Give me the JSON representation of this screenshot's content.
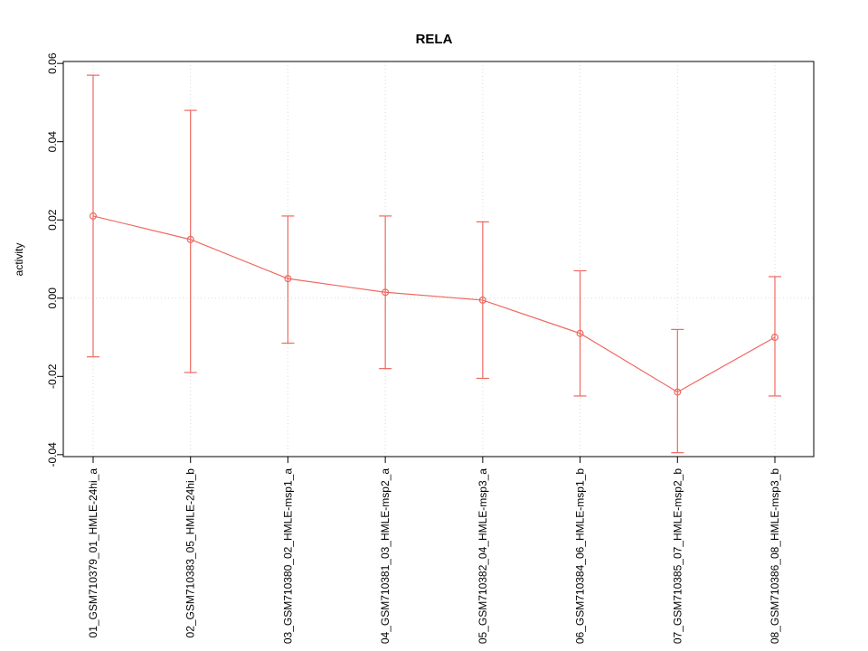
{
  "chart_data": {
    "type": "line",
    "title": "RELA",
    "xlabel": "",
    "ylabel": "activity",
    "ylim": [
      -0.0405,
      0.0605
    ],
    "yticks": [
      -0.04,
      -0.02,
      0.0,
      0.02,
      0.04,
      0.06
    ],
    "grid": "dotted vertical line at each category; dotted horizontal line at y=0",
    "legend": "none",
    "point_style": "open-circle",
    "color": "#ef6860",
    "grid_color": "#d9d9d9",
    "categories": [
      "01_GSM710379_01_HMLE-24hi_a",
      "02_GSM710383_05_HMLE-24hi_b",
      "03_GSM710380_02_HMLE-msp1_a",
      "04_GSM710381_03_HMLE-msp2_a",
      "05_GSM710382_04_HMLE-msp3_a",
      "06_GSM710384_06_HMLE-msp1_b",
      "07_GSM710385_07_HMLE-msp2_b",
      "08_GSM710386_08_HMLE-msp3_b"
    ],
    "series": [
      {
        "name": "RELA activity",
        "values": [
          0.021,
          0.015,
          0.005,
          0.0015,
          -0.0005,
          -0.009,
          -0.024,
          -0.01
        ],
        "upper": [
          0.057,
          0.048,
          0.021,
          0.021,
          0.0195,
          0.007,
          -0.008,
          0.0055
        ],
        "lower": [
          -0.015,
          -0.019,
          -0.0115,
          -0.018,
          -0.0205,
          -0.025,
          -0.0395,
          -0.025
        ]
      }
    ]
  }
}
